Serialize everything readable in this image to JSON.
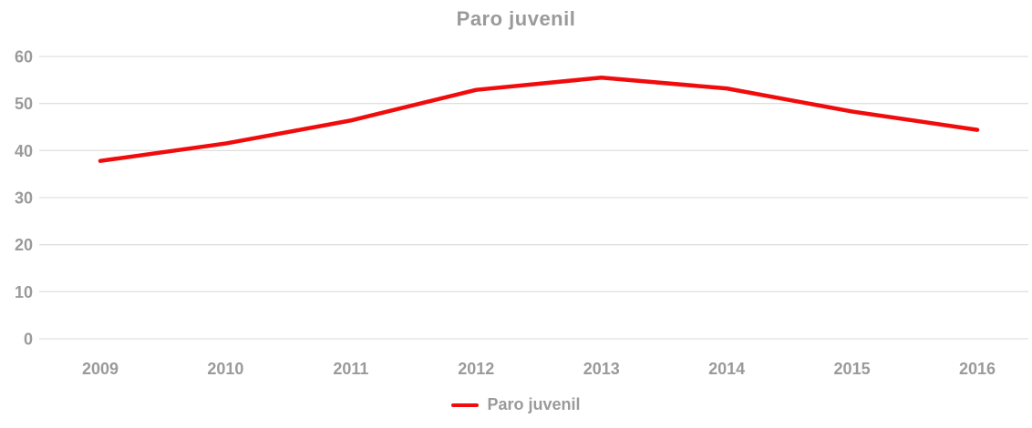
{
  "page": {
    "background_color": "#ffffff",
    "text_color": "#9a9a9a",
    "grid_color": "#e0e0e0"
  },
  "chart_data": {
    "type": "line",
    "title": "Paro juvenil",
    "categories": [
      "2009",
      "2010",
      "2011",
      "2012",
      "2013",
      "2014",
      "2015",
      "2016"
    ],
    "series": [
      {
        "name": "Paro juvenil",
        "color": "#f00c0c",
        "values": [
          37.8,
          41.5,
          46.4,
          52.9,
          55.5,
          53.2,
          48.3,
          44.4
        ]
      }
    ],
    "xlabel": "",
    "ylabel": "",
    "ylim": [
      0,
      60
    ],
    "yticks": [
      0,
      10,
      20,
      30,
      40,
      50,
      60
    ],
    "grid": true,
    "legend_position": "bottom"
  }
}
